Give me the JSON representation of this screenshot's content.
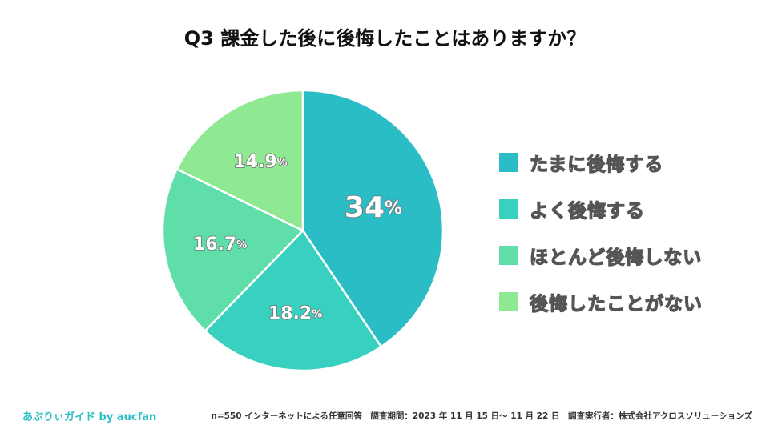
{
  "title": "Q3 課金した後に後悔したことはありますか？",
  "chart_data": {
    "type": "pie",
    "title": "Q3 課金した後に後悔したことはありますか？",
    "slices": [
      {
        "label": "たまに後悔する",
        "value": 34,
        "display": "34",
        "color": "#2bbdc6"
      },
      {
        "label": "よく後悔する",
        "value": 18.2,
        "display": "18.2",
        "color": "#38d0be"
      },
      {
        "label": "ほとんど後悔しない",
        "value": 16.7,
        "display": "16.7",
        "color": "#5fdeaa"
      },
      {
        "label": "後悔したことがない",
        "value": 14.9,
        "display": "14.9",
        "color": "#8fe892"
      }
    ],
    "unit": "%",
    "legend_position": "right"
  },
  "legend": {
    "items": [
      {
        "label": "たまに後悔する",
        "color": "#2bbdc6"
      },
      {
        "label": "よく後悔する",
        "color": "#38d0be"
      },
      {
        "label": "ほとんど後悔しない",
        "color": "#5fdeaa"
      },
      {
        "label": "後悔したことがない",
        "color": "#8fe892"
      }
    ]
  },
  "footer": {
    "brand": "あぷりぃガイド by aucfan",
    "note": "n=550 インターネットによる任意回答　調査期間：2023 年 11 月 15 日〜 11 月 22 日　調査実行者：株式会社アクロスソリューションズ"
  }
}
